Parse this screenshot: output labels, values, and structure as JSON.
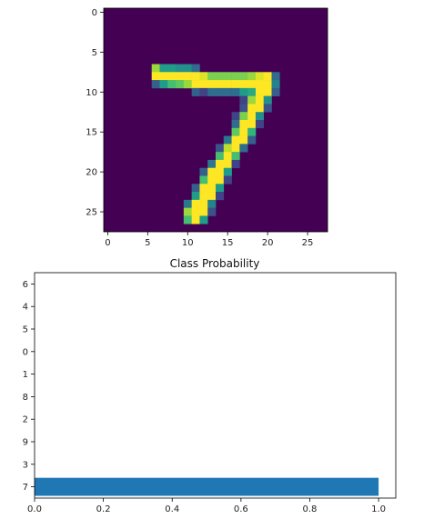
{
  "chart_data": [
    {
      "type": "heatmap",
      "title": "",
      "colormap": "viridis",
      "vmin": 0,
      "vmax": 1,
      "xlim": [
        -0.5,
        27.5
      ],
      "ylim": [
        27.5,
        -0.5
      ],
      "xticks": [
        0,
        5,
        10,
        15,
        20,
        25
      ],
      "yticks": [
        0,
        5,
        10,
        15,
        20,
        25
      ],
      "rows": 28,
      "cols": 28,
      "pixels": [
        {
          "row": 7,
          "cols": [
            6,
            7,
            8,
            9,
            10,
            11
          ],
          "values": [
            0.85,
            0.55,
            0.55,
            0.5,
            0.5,
            0.35
          ]
        },
        {
          "row": 8,
          "cols": [
            6,
            7,
            8,
            9,
            10,
            11,
            12,
            13,
            14,
            15,
            16,
            17,
            18,
            19,
            20,
            21
          ],
          "values": [
            1,
            1,
            1,
            1,
            1,
            1,
            0.95,
            0.8,
            0.8,
            0.8,
            0.8,
            0.8,
            0.85,
            0.95,
            1,
            0.35
          ]
        },
        {
          "row": 9,
          "cols": [
            6,
            7,
            8,
            9,
            10,
            11,
            12,
            13,
            14,
            15,
            16,
            17,
            18,
            19,
            20,
            21
          ],
          "values": [
            0.3,
            0.55,
            0.7,
            0.75,
            0.85,
            1,
            1,
            1,
            1,
            1,
            1,
            1,
            1,
            1,
            1,
            0.45
          ]
        },
        {
          "row": 10,
          "cols": [
            11,
            12,
            13,
            14,
            15,
            16,
            17,
            18,
            19,
            20,
            21
          ],
          "values": [
            0.3,
            0.2,
            0.35,
            0.35,
            0.35,
            0.35,
            0.55,
            0.6,
            1,
            1,
            0.3
          ]
        },
        {
          "row": 11,
          "cols": [
            17,
            18,
            19,
            20
          ],
          "values": [
            0.2,
            0.85,
            1,
            0.5
          ]
        },
        {
          "row": 12,
          "cols": [
            17,
            18,
            19,
            20
          ],
          "values": [
            0.25,
            1,
            1,
            0.25
          ]
        },
        {
          "row": 13,
          "cols": [
            16,
            17,
            18,
            19
          ],
          "values": [
            0.2,
            0.8,
            1,
            0.5
          ]
        },
        {
          "row": 14,
          "cols": [
            16,
            17,
            18,
            19
          ],
          "values": [
            0.35,
            1,
            1,
            0.2
          ]
        },
        {
          "row": 15,
          "cols": [
            16,
            17,
            18
          ],
          "values": [
            0.75,
            1,
            0.65
          ]
        },
        {
          "row": 16,
          "cols": [
            15,
            16,
            17,
            18
          ],
          "values": [
            0.4,
            1,
            1,
            0.3
          ]
        },
        {
          "row": 17,
          "cols": [
            14,
            15,
            16,
            17
          ],
          "values": [
            0.25,
            0.9,
            1,
            0.35
          ]
        },
        {
          "row": 18,
          "cols": [
            14,
            15,
            16
          ],
          "values": [
            0.7,
            1,
            0.7
          ]
        },
        {
          "row": 19,
          "cols": [
            13,
            14,
            15,
            16
          ],
          "values": [
            0.4,
            1,
            1,
            0.2
          ]
        },
        {
          "row": 20,
          "cols": [
            12,
            13,
            14,
            15
          ],
          "values": [
            0.3,
            1,
            1,
            0.55
          ]
        },
        {
          "row": 21,
          "cols": [
            12,
            13,
            14,
            15
          ],
          "values": [
            0.7,
            1,
            1,
            0.2
          ]
        },
        {
          "row": 22,
          "cols": [
            11,
            12,
            13,
            14
          ],
          "values": [
            0.3,
            1,
            1,
            0.55
          ]
        },
        {
          "row": 23,
          "cols": [
            11,
            12,
            13,
            14
          ],
          "values": [
            0.55,
            1,
            1,
            0.2
          ]
        },
        {
          "row": 24,
          "cols": [
            10,
            11,
            12,
            13
          ],
          "values": [
            0.4,
            1,
            1,
            0.45
          ]
        },
        {
          "row": 25,
          "cols": [
            10,
            11,
            12,
            13
          ],
          "values": [
            0.85,
            1,
            1,
            0.25
          ]
        },
        {
          "row": 26,
          "cols": [
            10,
            11,
            12
          ],
          "values": [
            0.7,
            1,
            0.55
          ]
        }
      ]
    },
    {
      "type": "bar",
      "orientation": "horizontal",
      "title": "Class Probability",
      "categories": [
        "7",
        "3",
        "9",
        "2",
        "8",
        "1",
        "0",
        "5",
        "4",
        "6"
      ],
      "values": [
        1.0,
        0,
        0,
        0,
        0,
        0,
        0,
        0,
        0,
        0
      ],
      "xlim": [
        0,
        1.05
      ],
      "xticks": [
        "0.0",
        "0.2",
        "0.4",
        "0.6",
        "0.8",
        "1.0"
      ],
      "bar_color": "#1f77b4",
      "grid": false,
      "xlabel": "",
      "ylabel": ""
    }
  ]
}
